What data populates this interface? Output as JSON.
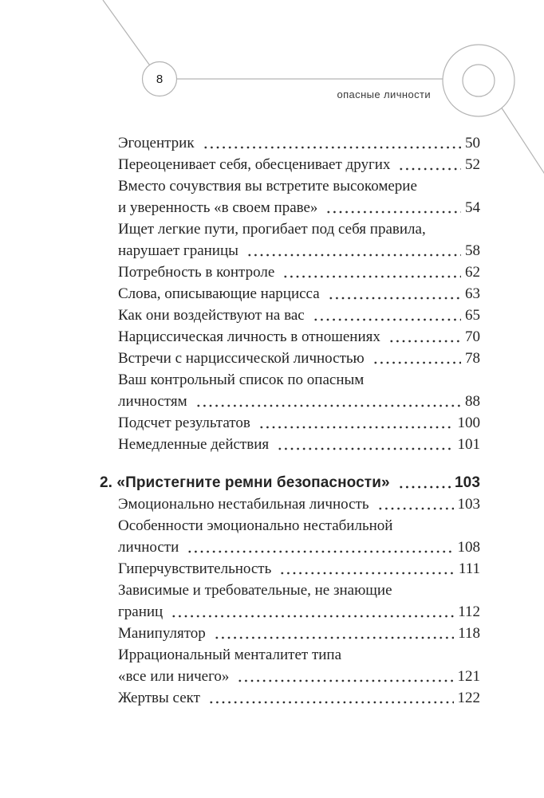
{
  "colors": {
    "decor_line": "#b3b3b3",
    "text": "#242424",
    "background": "#ffffff"
  },
  "header": {
    "page_number": "8",
    "running_title": "опасные личности"
  },
  "toc": {
    "entries": [
      {
        "type": "section",
        "lines": [
          "Эгоцентрик"
        ],
        "page": "50"
      },
      {
        "type": "section",
        "lines": [
          "Переоценивает себя, обесценивает других"
        ],
        "page": "52"
      },
      {
        "type": "section",
        "lines": [
          "Вместо сочувствия вы встретите высокомерие",
          "и уверенность «в своем праве»"
        ],
        "page": "54"
      },
      {
        "type": "section",
        "lines": [
          "Ищет легкие пути, прогибает под себя правила,",
          "нарушает границы"
        ],
        "page": "58"
      },
      {
        "type": "section",
        "lines": [
          "Потребность в контроле"
        ],
        "page": "62"
      },
      {
        "type": "section",
        "lines": [
          "Слова, описывающие нарцисса"
        ],
        "page": "63"
      },
      {
        "type": "section",
        "lines": [
          "Как они воздействуют на вас"
        ],
        "page": "65"
      },
      {
        "type": "section",
        "lines": [
          "Нарциссическая личность в отношениях"
        ],
        "page": "70"
      },
      {
        "type": "section",
        "lines": [
          "Встречи с нарциссической личностью"
        ],
        "page": "78"
      },
      {
        "type": "section",
        "lines": [
          "Ваш контрольный список по опасным",
          "личностям"
        ],
        "page": "88"
      },
      {
        "type": "section",
        "lines": [
          "Подсчет результатов"
        ],
        "page": "100"
      },
      {
        "type": "section",
        "lines": [
          "Немедленные действия"
        ],
        "page": "101"
      },
      {
        "type": "chapter",
        "lines": [
          "2. «Пристегните ремни безопасности»"
        ],
        "page": "103"
      },
      {
        "type": "section",
        "lines": [
          "Эмоционально нестабильная личность"
        ],
        "page": "103"
      },
      {
        "type": "section",
        "lines": [
          "Особенности эмоционально нестабильной",
          "личности"
        ],
        "page": "108"
      },
      {
        "type": "section",
        "lines": [
          "Гиперчувствительность"
        ],
        "page": "111"
      },
      {
        "type": "section",
        "lines": [
          "Зависимые и требовательные, не знающие",
          "границ"
        ],
        "page": "112"
      },
      {
        "type": "section",
        "lines": [
          "Манипулятор"
        ],
        "page": "118"
      },
      {
        "type": "section",
        "lines": [
          "Иррациональный менталитет типа",
          "«все или ничего»"
        ],
        "page": "121"
      },
      {
        "type": "section",
        "lines": [
          "Жертвы сект"
        ],
        "page": "122"
      }
    ]
  }
}
